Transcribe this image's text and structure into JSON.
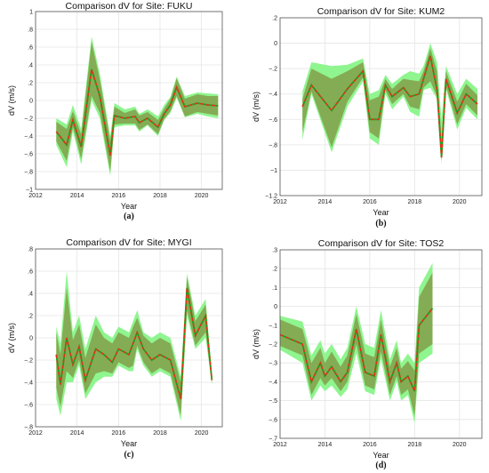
{
  "chart_data": [
    {
      "id": "a",
      "type": "line",
      "title": "Comparison dV for Site: FUKU",
      "xlabel": "Year",
      "ylabel": "dV (m/s)",
      "caption": "(a)",
      "xlim": [
        2012,
        2021
      ],
      "ylim": [
        -1,
        1
      ],
      "xticks": [
        2012,
        2014,
        2016,
        2018,
        2020
      ],
      "yticks": [
        -1,
        -0.8,
        -0.6,
        -0.4,
        -0.2,
        0,
        0.2,
        0.4,
        0.6,
        0.8,
        1
      ],
      "x": [
        2013.0,
        2013.5,
        2013.8,
        2014.2,
        2014.7,
        2015.1,
        2015.6,
        2015.8,
        2016.3,
        2016.8,
        2017.0,
        2017.4,
        2017.9,
        2018.2,
        2018.5,
        2018.8,
        2019.2,
        2019.8,
        2020.3,
        2020.8
      ],
      "series": [
        {
          "values": [
            -0.35,
            -0.5,
            -0.22,
            -0.52,
            0.35,
            0.05,
            -0.62,
            -0.17,
            -0.2,
            -0.18,
            -0.25,
            -0.2,
            -0.3,
            -0.15,
            -0.05,
            0.15,
            -0.07,
            -0.03,
            -0.05,
            -0.06
          ]
        }
      ],
      "band_outer": {
        "lower": [
          -0.5,
          -0.75,
          -0.35,
          -0.72,
          0.0,
          -0.2,
          -0.85,
          -0.3,
          -0.28,
          -0.28,
          -0.35,
          -0.28,
          -0.4,
          -0.22,
          -0.14,
          0.03,
          -0.19,
          -0.15,
          -0.18,
          -0.2
        ],
        "upper": [
          -0.2,
          -0.27,
          -0.05,
          -0.32,
          0.72,
          0.3,
          -0.4,
          -0.03,
          -0.1,
          -0.07,
          -0.15,
          -0.1,
          -0.18,
          -0.05,
          0.04,
          0.27,
          0.05,
          0.09,
          0.08,
          0.07
        ]
      },
      "band_inner": {
        "lower": [
          -0.46,
          -0.68,
          -0.3,
          -0.66,
          0.05,
          -0.14,
          -0.8,
          -0.27,
          -0.26,
          -0.26,
          -0.33,
          -0.27,
          -0.38,
          -0.21,
          -0.12,
          0.05,
          -0.18,
          -0.13,
          -0.15,
          -0.17
        ],
        "upper": [
          -0.24,
          -0.32,
          -0.12,
          -0.38,
          0.66,
          0.24,
          -0.45,
          -0.07,
          -0.14,
          -0.1,
          -0.17,
          -0.13,
          -0.22,
          -0.09,
          0.02,
          0.25,
          0.02,
          0.07,
          0.05,
          0.05
        ]
      }
    },
    {
      "id": "b",
      "type": "line",
      "title": "Comparison dV for Site: KUM2",
      "xlabel": "Year",
      "ylabel": "dV (m/s)",
      "caption": "(b)",
      "xlim": [
        2012,
        2021
      ],
      "ylim": [
        -1.2,
        0.2
      ],
      "xticks": [
        2012,
        2014,
        2016,
        2018,
        2020
      ],
      "yticks": [
        -1.2,
        -1,
        -0.8,
        -0.6,
        -0.4,
        -0.2,
        0,
        0.2
      ],
      "x": [
        2013.0,
        2013.4,
        2014.3,
        2015.0,
        2015.7,
        2016.0,
        2016.4,
        2016.7,
        2017.0,
        2017.5,
        2017.8,
        2018.2,
        2018.4,
        2018.7,
        2019.0,
        2019.2,
        2019.4,
        2019.9,
        2020.3,
        2020.8
      ],
      "series": [
        {
          "values": [
            -0.5,
            -0.33,
            -0.53,
            -0.36,
            -0.22,
            -0.6,
            -0.6,
            -0.33,
            -0.42,
            -0.35,
            -0.42,
            -0.4,
            -0.28,
            -0.1,
            -0.37,
            -0.9,
            -0.28,
            -0.55,
            -0.4,
            -0.48
          ]
        }
      ],
      "band_outer": {
        "lower": [
          -0.76,
          -0.4,
          -0.86,
          -0.5,
          -0.3,
          -0.75,
          -0.8,
          -0.4,
          -0.52,
          -0.42,
          -0.54,
          -0.58,
          -0.37,
          -0.35,
          -0.44,
          -0.95,
          -0.36,
          -0.68,
          -0.51,
          -0.6
        ],
        "upper": [
          -0.38,
          -0.15,
          -0.18,
          -0.17,
          -0.12,
          -0.4,
          -0.37,
          -0.25,
          -0.32,
          -0.25,
          -0.22,
          -0.24,
          -0.18,
          0.0,
          -0.15,
          -0.6,
          -0.18,
          -0.4,
          -0.28,
          -0.36
        ]
      },
      "band_inner": {
        "lower": [
          -0.7,
          -0.38,
          -0.82,
          -0.46,
          -0.27,
          -0.7,
          -0.75,
          -0.37,
          -0.48,
          -0.4,
          -0.5,
          -0.52,
          -0.35,
          -0.3,
          -0.42,
          -0.92,
          -0.34,
          -0.64,
          -0.48,
          -0.57
        ],
        "upper": [
          -0.44,
          -0.2,
          -0.28,
          -0.22,
          -0.15,
          -0.45,
          -0.42,
          -0.28,
          -0.36,
          -0.28,
          -0.29,
          -0.3,
          -0.22,
          -0.04,
          -0.22,
          -0.75,
          -0.22,
          -0.46,
          -0.32,
          -0.41
        ]
      }
    },
    {
      "id": "c",
      "type": "line",
      "title": "Comparison dV for Site: MYGI",
      "xlabel": "Year",
      "ylabel": "dV (m/s)",
      "caption": "(c)",
      "xlim": [
        2012,
        2021
      ],
      "ylim": [
        -0.8,
        0.8
      ],
      "xticks": [
        2012,
        2014,
        2016,
        2018,
        2020
      ],
      "yticks": [
        -0.8,
        -0.6,
        -0.4,
        -0.2,
        0,
        0.2,
        0.4,
        0.6,
        0.8
      ],
      "x": [
        2013.0,
        2013.2,
        2013.5,
        2013.8,
        2014.1,
        2014.4,
        2014.9,
        2015.3,
        2015.7,
        2016.0,
        2016.5,
        2016.7,
        2016.9,
        2017.2,
        2017.6,
        2018.0,
        2018.5,
        2019.0,
        2019.3,
        2019.7,
        2020.2,
        2020.5
      ],
      "series": [
        {
          "values": [
            -0.15,
            -0.42,
            0.0,
            -0.24,
            -0.08,
            -0.38,
            -0.1,
            -0.15,
            -0.22,
            -0.1,
            -0.15,
            -0.05,
            0.05,
            -0.1,
            -0.2,
            -0.15,
            -0.2,
            -0.55,
            0.45,
            0.02,
            0.2,
            -0.38
          ]
        }
      ],
      "band_outer": {
        "lower": [
          -0.55,
          -0.7,
          -0.4,
          -0.4,
          -0.25,
          -0.55,
          -0.4,
          -0.35,
          -0.35,
          -0.25,
          -0.3,
          -0.3,
          -0.1,
          -0.25,
          -0.35,
          -0.3,
          -0.35,
          -0.75,
          0.2,
          -0.1,
          0.0,
          -0.42
        ],
        "upper": [
          0.1,
          -0.05,
          0.6,
          0.05,
          0.2,
          -0.1,
          0.2,
          0.05,
          0.0,
          0.1,
          0.05,
          0.15,
          0.25,
          0.05,
          0.0,
          0.05,
          0.0,
          -0.35,
          0.58,
          0.2,
          0.35,
          -0.32
        ]
      },
      "band_inner": {
        "lower": [
          -0.45,
          -0.62,
          -0.3,
          -0.36,
          -0.2,
          -0.5,
          -0.32,
          -0.3,
          -0.32,
          -0.22,
          -0.27,
          -0.25,
          -0.07,
          -0.22,
          -0.32,
          -0.27,
          -0.32,
          -0.7,
          0.25,
          -0.07,
          0.05,
          -0.41
        ],
        "upper": [
          0.05,
          -0.15,
          0.45,
          -0.02,
          0.12,
          -0.18,
          0.12,
          0.0,
          -0.05,
          0.05,
          0.0,
          0.1,
          0.18,
          0.02,
          -0.05,
          0.0,
          -0.05,
          -0.4,
          0.55,
          0.15,
          0.3,
          -0.34
        ]
      }
    },
    {
      "id": "d",
      "type": "line",
      "title": "Comparison dV for Site: TOS2",
      "xlabel": "Year",
      "ylabel": "dV (m/s)",
      "caption": "(d)",
      "xlim": [
        2012,
        2021
      ],
      "ylim": [
        -0.7,
        0.3
      ],
      "xticks": [
        2012,
        2014,
        2016,
        2018,
        2020
      ],
      "yticks": [
        -0.7,
        -0.6,
        -0.5,
        -0.4,
        -0.3,
        -0.2,
        -0.1,
        0,
        0.1,
        0.2,
        0.3
      ],
      "x": [
        2012.0,
        2013.0,
        2013.4,
        2013.8,
        2014.0,
        2014.3,
        2014.7,
        2015.0,
        2015.4,
        2015.8,
        2016.2,
        2016.5,
        2016.9,
        2017.2,
        2017.4,
        2017.7,
        2018.0,
        2018.2,
        2018.8
      ],
      "series": [
        {
          "values": [
            -0.15,
            -0.2,
            -0.4,
            -0.3,
            -0.37,
            -0.32,
            -0.4,
            -0.35,
            -0.12,
            -0.35,
            -0.37,
            -0.15,
            -0.4,
            -0.3,
            -0.4,
            -0.37,
            -0.45,
            -0.1,
            -0.01
          ]
        }
      ],
      "band_outer": {
        "lower": [
          -0.23,
          -0.3,
          -0.5,
          -0.42,
          -0.45,
          -0.42,
          -0.48,
          -0.44,
          -0.25,
          -0.45,
          -0.47,
          -0.28,
          -0.5,
          -0.4,
          -0.5,
          -0.47,
          -0.62,
          -0.3,
          -0.25
        ],
        "upper": [
          -0.05,
          -0.08,
          -0.26,
          -0.18,
          -0.25,
          -0.2,
          -0.28,
          -0.22,
          0.0,
          -0.2,
          -0.22,
          -0.02,
          -0.28,
          -0.18,
          -0.3,
          -0.25,
          -0.3,
          0.1,
          0.23
        ]
      },
      "band_inner": {
        "lower": [
          -0.21,
          -0.26,
          -0.47,
          -0.38,
          -0.42,
          -0.38,
          -0.45,
          -0.4,
          -0.2,
          -0.42,
          -0.44,
          -0.24,
          -0.47,
          -0.37,
          -0.47,
          -0.44,
          -0.58,
          -0.25,
          -0.2
        ],
        "upper": [
          -0.07,
          -0.12,
          -0.3,
          -0.22,
          -0.3,
          -0.24,
          -0.32,
          -0.26,
          -0.04,
          -0.25,
          -0.27,
          -0.07,
          -0.32,
          -0.22,
          -0.33,
          -0.29,
          -0.34,
          0.05,
          0.18
        ]
      }
    }
  ],
  "colors": {
    "band_outer": "#8ff58f",
    "band_inner": "#84a852",
    "line_green": "#1aa31a",
    "line_red": "#e8301a",
    "grid": "#e4e4e4",
    "axis": "#555555"
  }
}
